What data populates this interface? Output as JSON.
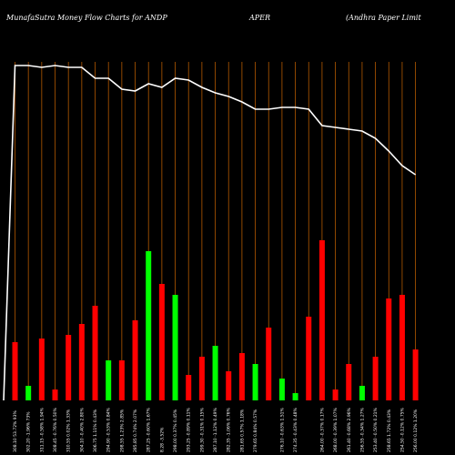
{
  "header": {
    "left": "MunafaSutra  Money Flow  Charts for ANDP",
    "middle": "APER",
    "right": "(Andhra  Paper Limit"
  },
  "colors": {
    "background": "#000000",
    "gridline": "#b35900",
    "up": "#00ff00",
    "down": "#ff0000",
    "line": "#ffffff"
  },
  "chart_data": {
    "type": "bar",
    "title": "MunafaSutra  Money Flow  Charts for ANDPAPER (Andhra  Paper Limit",
    "ylim": [
      0,
      100
    ],
    "categories": [
      "308.10 53.72% 93%",
      "302.20 -1.96% 73%",
      "311.15 -0.58% 1.94%",
      "308.45 -0.76% 0.50%",
      "310.55 0.02% 1.33%",
      "304.10 -0.40% 2.80%",
      "306.75 1.11% 0.43%",
      "294.90 -0.53% 0.84%",
      "298.55 1.23% 2.85%",
      "285.85 0.74% 2.07%",
      "287.25 -0.60% 1.67%",
      "8.28 -3.52%",
      "298.00 0.37% 0.45%",
      "293.25 -0.89% 0.11%",
      "299.30 -0.31% 0.15%",
      "287.10 -1.12% 0.49%",
      "282.35 -1.06% 0.76%",
      "281.65 0.57% 1.18%",
      "279.65 0.84% 0.57%",
      "",
      "276.10 -0.63% 1.51%",
      "274.35 -0.43% 0.48%",
      "",
      "264.00 -0.37% 0.17%",
      "268.00 -0.39% 1.07%",
      "261.40 -0.68% 2.96%",
      "256.55 -0.34% 1.27%",
      "253.40 -0.50% 0.21%",
      "258.65 1.72% 0.43%",
      "254.50 -0.12% 0.75%",
      "256.00 0.12% 1.20%"
    ],
    "bar_values": [
      16,
      4,
      17,
      3,
      18,
      21,
      26,
      11,
      11,
      22,
      41,
      32,
      29,
      7,
      12,
      15,
      8,
      13,
      10,
      20,
      6,
      2,
      23,
      44,
      3,
      10,
      4,
      12,
      28,
      29,
      14
    ],
    "bar_colors": [
      "red",
      "green",
      "red",
      "red",
      "red",
      "red",
      "red",
      "green",
      "red",
      "red",
      "green",
      "red",
      "green",
      "red",
      "red",
      "green",
      "red",
      "red",
      "green",
      "red",
      "green",
      "green",
      "red",
      "red",
      "red",
      "red",
      "green",
      "red",
      "red",
      "red",
      "red"
    ],
    "line_values": [
      92,
      92,
      91.5,
      92,
      91.5,
      91.5,
      88.5,
      88.5,
      85.5,
      85,
      87,
      86,
      88.5,
      88,
      86,
      84.5,
      83.5,
      82,
      80,
      80,
      80.5,
      80.5,
      80,
      75.5,
      75,
      74.5,
      74,
      72,
      68.5,
      64.5,
      62
    ],
    "grid": true
  }
}
